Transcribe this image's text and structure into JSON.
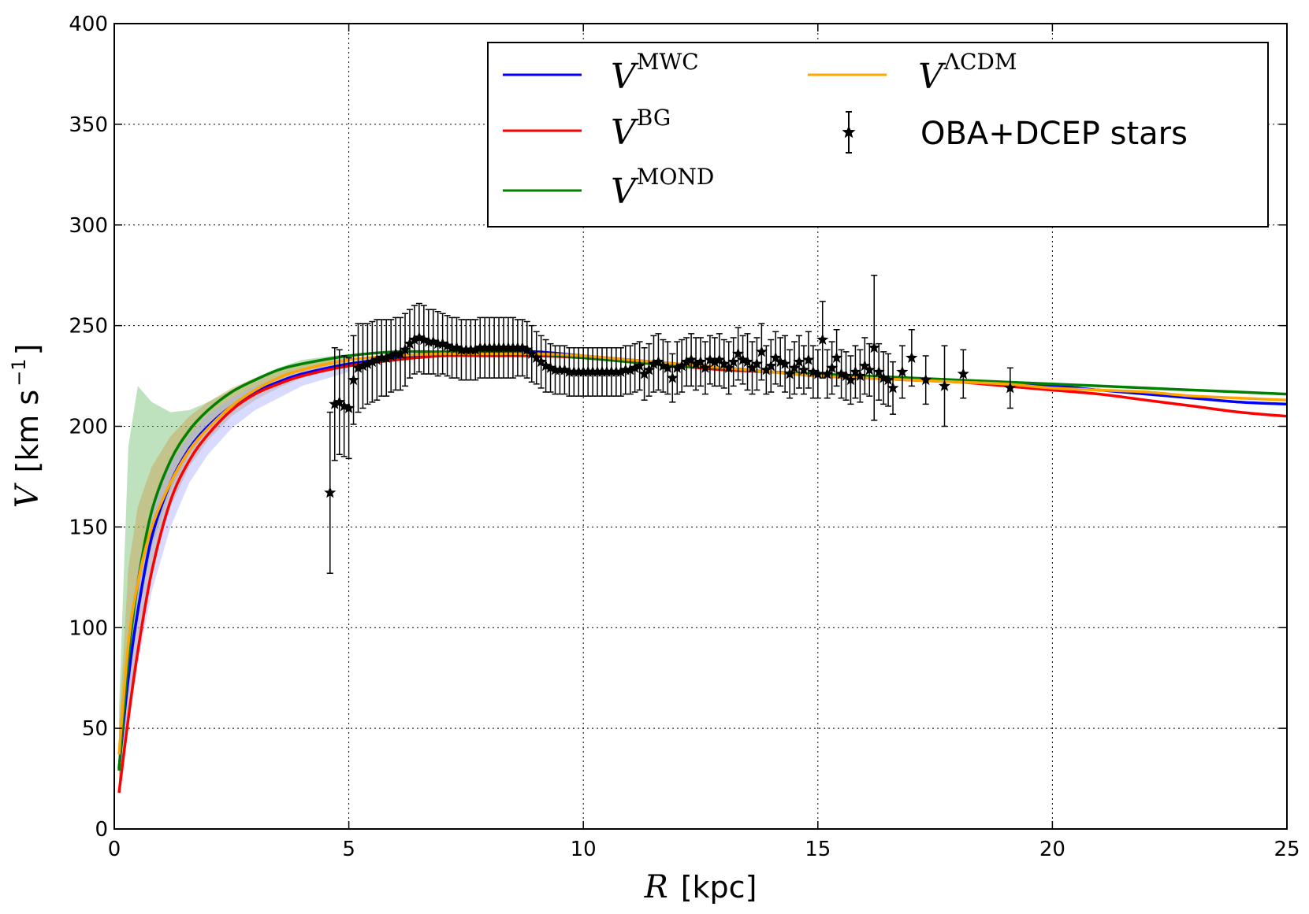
{
  "chart_data": {
    "type": "line",
    "xlabel": {
      "var": "R",
      "unit": "[kpc]"
    },
    "ylabel": {
      "var": "V",
      "unit": "[km s",
      "unit_exp": "−1",
      "unit_close": "]"
    },
    "xlim": [
      0,
      25
    ],
    "ylim": [
      0,
      400
    ],
    "xticks": [
      "0",
      "5",
      "10",
      "15",
      "20",
      "25"
    ],
    "yticks": [
      "0",
      "50",
      "100",
      "150",
      "200",
      "250",
      "300",
      "350",
      "400"
    ],
    "grid": true,
    "legend_position": "top-right",
    "legend": [
      {
        "base": "V",
        "sup": "MWC",
        "color": "#0000ff"
      },
      {
        "base": "V",
        "sup": "BG",
        "color": "#ff0000"
      },
      {
        "base": "V",
        "sup": "MOND",
        "color": "#008000"
      },
      {
        "base": "V",
        "sup": "ΛCDM",
        "color": "#ffa500"
      },
      {
        "label": "OBA+DCEP stars",
        "color": "#000000"
      }
    ],
    "series": [
      {
        "name": "MWC",
        "color": "#0000ff",
        "x": [
          0.1,
          0.3,
          0.5,
          0.8,
          1.2,
          1.6,
          2.0,
          2.5,
          3.0,
          3.5,
          4.0,
          5.0,
          6.0,
          7.0,
          8.0,
          9.0,
          10.0,
          11.0,
          12.0,
          13.0,
          14.0,
          15.0,
          16.0,
          17.0,
          18.0,
          19.0,
          20.0,
          21.0,
          22.0,
          23.0,
          24.0,
          25.0
        ],
        "y": [
          30,
          75,
          108,
          145,
          172,
          189,
          200,
          210,
          217,
          222,
          226,
          231,
          234,
          236,
          237,
          237,
          235,
          233,
          231,
          229,
          227,
          225,
          224,
          223,
          222,
          221,
          220,
          218,
          216,
          214,
          212,
          211
        ]
      },
      {
        "name": "BG",
        "color": "#ff0000",
        "x": [
          0.1,
          0.3,
          0.5,
          0.8,
          1.2,
          1.6,
          2.0,
          2.5,
          3.0,
          3.5,
          4.0,
          5.0,
          6.0,
          7.0,
          8.0,
          9.0,
          10.0,
          11.0,
          12.0,
          13.0,
          14.0,
          15.0,
          16.0,
          17.0,
          18.0,
          19.0,
          20.0,
          21.0,
          22.0,
          23.0,
          24.0,
          25.0
        ],
        "y": [
          18,
          55,
          88,
          128,
          163,
          183,
          196,
          208,
          216,
          221,
          225,
          230,
          233,
          235,
          235,
          235,
          234,
          232,
          230,
          228,
          227,
          225,
          224,
          223,
          222,
          220,
          218,
          216,
          213,
          210,
          207,
          205
        ]
      },
      {
        "name": "MOND",
        "color": "#008000",
        "x": [
          0.1,
          0.3,
          0.5,
          0.8,
          1.2,
          1.6,
          2.0,
          2.5,
          3.0,
          3.5,
          4.0,
          5.0,
          6.0,
          7.0,
          8.0,
          9.0,
          10.0,
          11.0,
          12.0,
          13.0,
          14.0,
          15.0,
          16.0,
          17.0,
          18.0,
          19.0,
          20.0,
          21.0,
          22.0,
          23.0,
          24.0,
          25.0
        ],
        "y": [
          29,
          85,
          122,
          158,
          183,
          198,
          208,
          217,
          223,
          228,
          231,
          235,
          237,
          237,
          237,
          236,
          234,
          232,
          230,
          229,
          227,
          226,
          225,
          224,
          223,
          222,
          221,
          220,
          219,
          218,
          217,
          216
        ]
      },
      {
        "name": "ΛCDM",
        "color": "#ffa500",
        "x": [
          0.1,
          0.3,
          0.5,
          0.8,
          1.2,
          1.6,
          2.0,
          2.5,
          3.0,
          3.5,
          4.0,
          5.0,
          6.0,
          7.0,
          8.0,
          9.0,
          10.0,
          11.0,
          12.0,
          13.0,
          14.0,
          15.0,
          16.0,
          17.0,
          18.0,
          19.0,
          20.0,
          21.0,
          22.0,
          23.0,
          24.0,
          25.0
        ],
        "y": [
          37,
          92,
          122,
          150,
          172,
          188,
          199,
          210,
          218,
          224,
          228,
          233,
          235,
          236,
          236,
          236,
          235,
          233,
          231,
          229,
          227,
          225,
          224,
          223,
          222,
          221,
          219,
          218,
          217,
          215,
          214,
          213
        ]
      }
    ],
    "bands": [
      {
        "color": "#6fbf6f",
        "x": [
          0.1,
          0.3,
          0.5,
          0.8,
          1.2,
          1.6,
          2.0,
          2.5,
          3.0,
          3.5,
          4.0,
          5.0
        ],
        "lower": [
          25,
          70,
          105,
          140,
          168,
          186,
          198,
          210,
          218,
          224,
          228,
          232
        ],
        "upper": [
          60,
          190,
          220,
          212,
          207,
          208,
          212,
          218,
          224,
          229,
          233,
          236
        ]
      },
      {
        "color": "#c8a050",
        "x": [
          0.1,
          0.3,
          0.5,
          0.8,
          1.2,
          1.6,
          2.0,
          2.5,
          3.0,
          3.5,
          4.0,
          5.0
        ],
        "lower": [
          20,
          60,
          92,
          130,
          160,
          180,
          193,
          205,
          213,
          219,
          224,
          230
        ],
        "upper": [
          50,
          130,
          160,
          180,
          195,
          205,
          212,
          219,
          224,
          228,
          231,
          234
        ]
      },
      {
        "color": "#a8b0ff",
        "x": [
          0.1,
          0.3,
          0.5,
          0.8,
          1.2,
          1.6,
          2.0,
          2.5,
          3.0,
          3.5,
          4.0,
          5.0
        ],
        "lower": [
          18,
          52,
          82,
          118,
          150,
          172,
          186,
          199,
          208,
          214,
          220,
          227
        ],
        "upper": [
          40,
          100,
          130,
          160,
          182,
          196,
          206,
          214,
          220,
          225,
          229,
          233
        ]
      }
    ],
    "stars": {
      "color": "#000000",
      "points": [
        [
          4.6,
          167,
          40
        ],
        [
          4.7,
          211,
          28
        ],
        [
          4.8,
          212,
          26
        ],
        [
          4.9,
          210,
          25
        ],
        [
          5.0,
          209,
          25
        ],
        [
          5.1,
          223,
          22
        ],
        [
          5.2,
          229,
          22
        ],
        [
          5.3,
          230,
          21
        ],
        [
          5.4,
          231,
          20
        ],
        [
          5.5,
          232,
          20
        ],
        [
          5.6,
          233,
          20
        ],
        [
          5.7,
          234,
          19
        ],
        [
          5.8,
          234,
          19
        ],
        [
          5.9,
          235,
          18
        ],
        [
          6.0,
          236,
          18
        ],
        [
          6.1,
          236,
          18
        ],
        [
          6.2,
          238,
          18
        ],
        [
          6.3,
          241,
          17
        ],
        [
          6.4,
          243,
          17
        ],
        [
          6.5,
          244,
          17
        ],
        [
          6.6,
          243,
          17
        ],
        [
          6.7,
          242,
          16
        ],
        [
          6.8,
          242,
          16
        ],
        [
          6.9,
          241,
          16
        ],
        [
          7.0,
          241,
          15
        ],
        [
          7.1,
          240,
          15
        ],
        [
          7.2,
          239,
          15
        ],
        [
          7.3,
          239,
          15
        ],
        [
          7.4,
          238,
          15
        ],
        [
          7.5,
          238,
          15
        ],
        [
          7.6,
          238,
          15
        ],
        [
          7.7,
          238,
          15
        ],
        [
          7.8,
          239,
          15
        ],
        [
          7.9,
          239,
          15
        ],
        [
          8.0,
          239,
          15
        ],
        [
          8.1,
          239,
          15
        ],
        [
          8.2,
          239,
          15
        ],
        [
          8.3,
          239,
          15
        ],
        [
          8.4,
          239,
          15
        ],
        [
          8.5,
          239,
          15
        ],
        [
          8.6,
          239,
          14
        ],
        [
          8.7,
          239,
          14
        ],
        [
          8.8,
          238,
          14
        ],
        [
          8.9,
          236,
          14
        ],
        [
          9.0,
          234,
          13
        ],
        [
          9.1,
          232,
          13
        ],
        [
          9.2,
          230,
          13
        ],
        [
          9.3,
          229,
          12
        ],
        [
          9.4,
          228,
          12
        ],
        [
          9.5,
          228,
          12
        ],
        [
          9.6,
          228,
          12
        ],
        [
          9.7,
          227,
          12
        ],
        [
          9.8,
          227,
          12
        ],
        [
          9.9,
          227,
          12
        ],
        [
          10.0,
          227,
          12
        ],
        [
          10.1,
          227,
          12
        ],
        [
          10.2,
          227,
          12
        ],
        [
          10.3,
          227,
          12
        ],
        [
          10.4,
          227,
          12
        ],
        [
          10.5,
          227,
          12
        ],
        [
          10.6,
          227,
          12
        ],
        [
          10.7,
          227,
          12
        ],
        [
          10.8,
          227,
          12
        ],
        [
          10.9,
          228,
          12
        ],
        [
          11.0,
          228,
          12
        ],
        [
          11.1,
          229,
          12
        ],
        [
          11.2,
          230,
          12
        ],
        [
          11.3,
          226,
          13
        ],
        [
          11.4,
          228,
          13
        ],
        [
          11.5,
          231,
          14
        ],
        [
          11.6,
          232,
          14
        ],
        [
          11.7,
          230,
          13
        ],
        [
          11.8,
          229,
          13
        ],
        [
          11.9,
          224,
          12
        ],
        [
          12.0,
          229,
          13
        ],
        [
          12.1,
          230,
          13
        ],
        [
          12.2,
          232,
          12
        ],
        [
          12.3,
          233,
          13
        ],
        [
          12.4,
          231,
          13
        ],
        [
          12.5,
          232,
          12
        ],
        [
          12.6,
          229,
          13
        ],
        [
          12.7,
          233,
          12
        ],
        [
          12.8,
          232,
          12
        ],
        [
          12.9,
          233,
          13
        ],
        [
          13.0,
          231,
          12
        ],
        [
          13.1,
          229,
          13
        ],
        [
          13.2,
          232,
          12
        ],
        [
          13.3,
          236,
          13
        ],
        [
          13.4,
          233,
          12
        ],
        [
          13.5,
          232,
          14
        ],
        [
          13.6,
          229,
          13
        ],
        [
          13.7,
          231,
          13
        ],
        [
          13.8,
          237,
          14
        ],
        [
          13.9,
          228,
          12
        ],
        [
          14.0,
          230,
          13
        ],
        [
          14.1,
          234,
          13
        ],
        [
          14.2,
          232,
          12
        ],
        [
          14.3,
          231,
          14
        ],
        [
          14.4,
          226,
          12
        ],
        [
          14.5,
          229,
          13
        ],
        [
          14.6,
          232,
          13
        ],
        [
          14.7,
          228,
          12
        ],
        [
          14.8,
          233,
          14
        ],
        [
          14.9,
          227,
          13
        ],
        [
          15.0,
          226,
          12
        ],
        [
          15.1,
          243,
          19
        ],
        [
          15.2,
          226,
          12
        ],
        [
          15.3,
          229,
          13
        ],
        [
          15.4,
          234,
          14
        ],
        [
          15.5,
          226,
          12
        ],
        [
          15.6,
          225,
          12
        ],
        [
          15.7,
          223,
          12
        ],
        [
          15.8,
          227,
          13
        ],
        [
          15.9,
          225,
          13
        ],
        [
          16.0,
          230,
          14
        ],
        [
          16.1,
          228,
          13
        ],
        [
          16.2,
          239,
          36
        ],
        [
          16.3,
          227,
          14
        ],
        [
          16.4,
          224,
          13
        ],
        [
          16.5,
          223,
          13
        ],
        [
          16.6,
          219,
          13
        ],
        [
          16.8,
          227,
          13
        ],
        [
          17.0,
          234,
          14
        ],
        [
          17.3,
          223,
          12
        ],
        [
          17.7,
          220,
          20
        ],
        [
          18.1,
          226,
          12
        ],
        [
          19.1,
          219,
          10
        ]
      ]
    }
  }
}
